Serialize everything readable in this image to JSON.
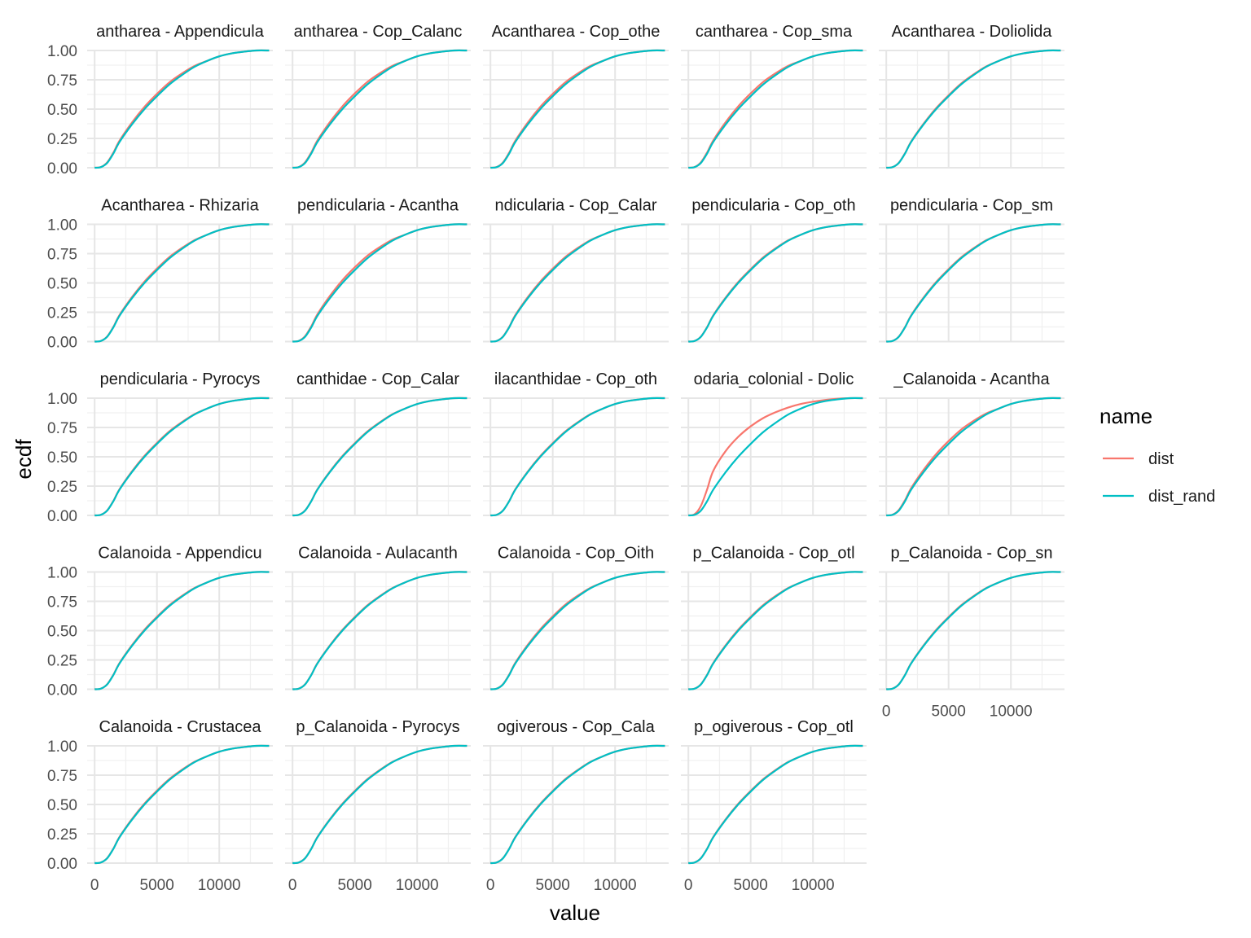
{
  "chart_data": {
    "type": "line",
    "title": "",
    "xlabel": "value",
    "ylabel": "ecdf",
    "xlim": [
      -600,
      14300
    ],
    "ylim": [
      0,
      1
    ],
    "x_ticks": [
      0,
      5000,
      10000
    ],
    "x_tick_labels": [
      "0",
      "5000",
      "10000"
    ],
    "y_ticks": [
      0,
      0.25,
      0.5,
      0.75,
      1
    ],
    "y_tick_labels": [
      "0.00",
      "0.25",
      "0.50",
      "0.75",
      "1.00"
    ],
    "grid": true,
    "legend": {
      "title": "name",
      "position": "right",
      "entries": [
        {
          "name": "dist",
          "color": "#F8766D"
        },
        {
          "name": "dist_rand",
          "color": "#00BFC4"
        }
      ]
    },
    "x": [
      0,
      500,
      1000,
      1500,
      2000,
      3000,
      4000,
      5000,
      6000,
      7000,
      8000,
      9000,
      10000,
      11000,
      12000,
      13000,
      14000
    ],
    "base_curve": [
      0,
      0.005,
      0.04,
      0.12,
      0.22,
      0.37,
      0.5,
      0.61,
      0.71,
      0.79,
      0.86,
      0.91,
      0.95,
      0.975,
      0.99,
      1.0,
      1.0
    ],
    "dist_curve_panel_14": [
      0,
      0.01,
      0.08,
      0.22,
      0.38,
      0.55,
      0.67,
      0.76,
      0.83,
      0.88,
      0.92,
      0.95,
      0.97,
      0.985,
      0.995,
      1.0,
      1.0
    ],
    "facets": [
      {
        "label": "antharea - Appendicula",
        "offset": 0.01
      },
      {
        "label": "antharea - Cop_Calanc",
        "offset": 0.012
      },
      {
        "label": "Acantharea - Cop_othe",
        "offset": 0.01
      },
      {
        "label": "cantharea - Cop_sma",
        "offset": 0.012
      },
      {
        "label": "Acantharea - Doliolida",
        "offset": 0.004
      },
      {
        "label": "Acantharea - Rhizaria",
        "offset": 0.006
      },
      {
        "label": "pendicularia - Acantha",
        "offset": 0.012
      },
      {
        "label": "ndicularia - Cop_Calar",
        "offset": 0.006
      },
      {
        "label": "pendicularia - Cop_oth",
        "offset": 0.004
      },
      {
        "label": "pendicularia - Cop_sm",
        "offset": 0.004
      },
      {
        "label": "pendicularia - Pyrocys",
        "offset": 0.004
      },
      {
        "label": "canthidae - Cop_Calar",
        "offset": 0.003
      },
      {
        "label": "ilacanthidae - Cop_oth",
        "offset": 0.003
      },
      {
        "label": "odaria_colonial - Dolic",
        "offset": 0,
        "highlight": true
      },
      {
        "label": "_Calanoida - Acantha",
        "offset": 0.012
      },
      {
        "label": "Calanoida - Appendicu",
        "offset": 0.004
      },
      {
        "label": "Calanoida - Aulacanth",
        "offset": 0.003
      },
      {
        "label": "Calanoida - Cop_Oith",
        "offset": 0.006
      },
      {
        "label": "p_Calanoida - Cop_otl",
        "offset": 0.004
      },
      {
        "label": "p_Calanoida - Cop_sn",
        "offset": 0.003
      },
      {
        "label": "Calanoida - Crustacea",
        "offset": 0.004
      },
      {
        "label": "p_Calanoida - Pyrocys",
        "offset": 0.003
      },
      {
        "label": "ogiverous - Cop_Cala",
        "offset": 0.003
      },
      {
        "label": "p_ogiverous - Cop_otl",
        "offset": 0.003
      }
    ]
  }
}
